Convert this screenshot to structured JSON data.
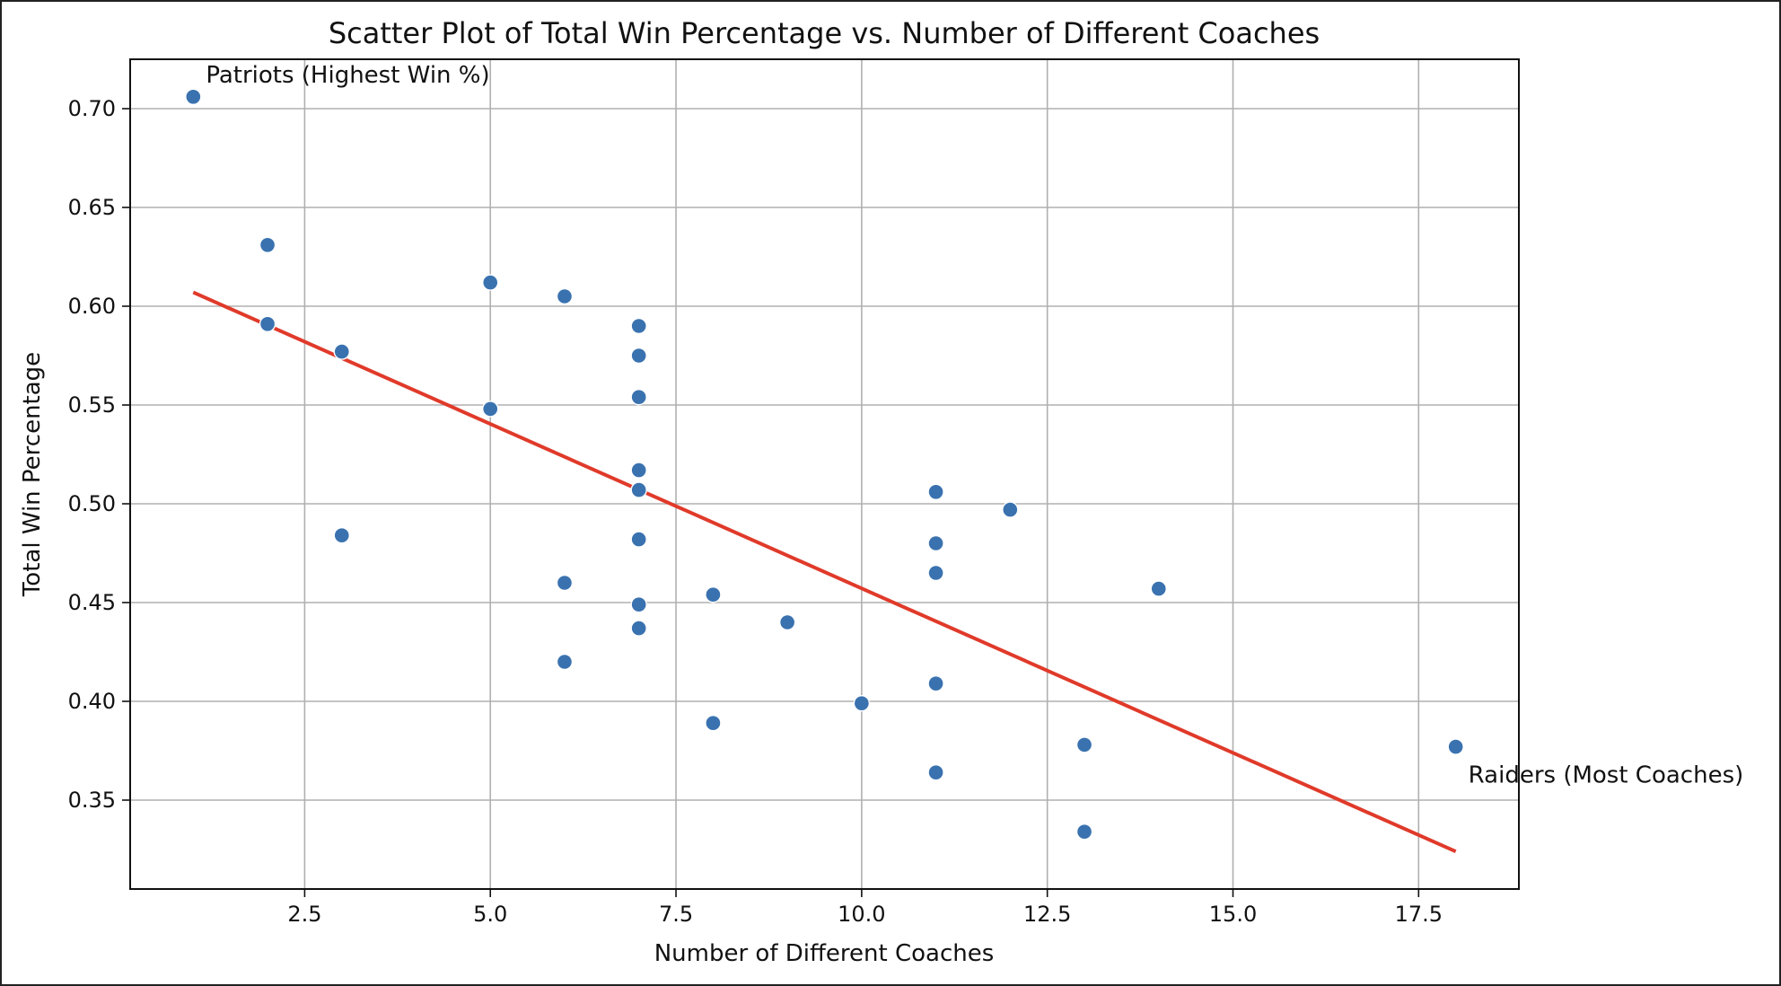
{
  "chart_data": {
    "type": "scatter",
    "title": "Scatter Plot of Total Win Percentage vs. Number of Different Coaches",
    "xlabel": "Number of Different Coaches",
    "ylabel": "Total Win Percentage",
    "xlim": [
      0.15,
      18.85
    ],
    "ylim": [
      0.305,
      0.725
    ],
    "grid": true,
    "xticks": [
      2.5,
      5.0,
      7.5,
      10.0,
      12.5,
      15.0,
      17.5
    ],
    "xtick_labels": [
      "2.5",
      "5.0",
      "7.5",
      "10.0",
      "12.5",
      "15.0",
      "17.5"
    ],
    "yticks": [
      0.35,
      0.4,
      0.45,
      0.5,
      0.55,
      0.6,
      0.65,
      0.7
    ],
    "ytick_labels": [
      "0.35",
      "0.40",
      "0.45",
      "0.50",
      "0.55",
      "0.60",
      "0.65",
      "0.70"
    ],
    "series": [
      {
        "color": "#3a72b0",
        "points": [
          {
            "x": 1,
            "y": 0.706
          },
          {
            "x": 2,
            "y": 0.631
          },
          {
            "x": 2,
            "y": 0.591
          },
          {
            "x": 3,
            "y": 0.577
          },
          {
            "x": 3,
            "y": 0.484
          },
          {
            "x": 5,
            "y": 0.612
          },
          {
            "x": 5,
            "y": 0.548
          },
          {
            "x": 6,
            "y": 0.605
          },
          {
            "x": 6,
            "y": 0.46
          },
          {
            "x": 6,
            "y": 0.42
          },
          {
            "x": 7,
            "y": 0.59
          },
          {
            "x": 7,
            "y": 0.575
          },
          {
            "x": 7,
            "y": 0.554
          },
          {
            "x": 7,
            "y": 0.517
          },
          {
            "x": 7,
            "y": 0.507
          },
          {
            "x": 7,
            "y": 0.482
          },
          {
            "x": 7,
            "y": 0.449
          },
          {
            "x": 7,
            "y": 0.437
          },
          {
            "x": 8,
            "y": 0.454
          },
          {
            "x": 8,
            "y": 0.389
          },
          {
            "x": 9,
            "y": 0.44
          },
          {
            "x": 10,
            "y": 0.399
          },
          {
            "x": 11,
            "y": 0.506
          },
          {
            "x": 11,
            "y": 0.48
          },
          {
            "x": 11,
            "y": 0.465
          },
          {
            "x": 11,
            "y": 0.409
          },
          {
            "x": 11,
            "y": 0.364
          },
          {
            "x": 12,
            "y": 0.497
          },
          {
            "x": 13,
            "y": 0.378
          },
          {
            "x": 13,
            "y": 0.334
          },
          {
            "x": 14,
            "y": 0.457
          },
          {
            "x": 18,
            "y": 0.377
          }
        ]
      }
    ],
    "trendline": {
      "color": "#e03a2a",
      "x": [
        1,
        18
      ],
      "y": [
        0.607,
        0.324
      ]
    },
    "annotations": [
      {
        "text": "Patriots (Highest Win %)",
        "x": 1,
        "y": 0.706
      },
      {
        "text": "Raiders (Most Coaches)",
        "x": 18,
        "y": 0.377
      }
    ]
  }
}
